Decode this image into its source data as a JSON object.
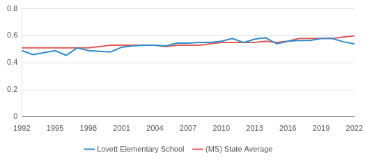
{
  "chart_data": {
    "type": "line",
    "x": [
      1992,
      1993,
      1994,
      1995,
      1996,
      1997,
      1998,
      1999,
      2000,
      2001,
      2002,
      2003,
      2004,
      2005,
      2006,
      2007,
      2008,
      2009,
      2010,
      2011,
      2012,
      2013,
      2014,
      2015,
      2016,
      2017,
      2018,
      2019,
      2020,
      2021,
      2022
    ],
    "series": [
      {
        "name": "Lovett Elementary School",
        "color": "#2f8ac4",
        "values": [
          0.49,
          0.46,
          0.475,
          0.49,
          0.455,
          0.51,
          0.49,
          0.485,
          0.48,
          0.515,
          0.525,
          0.53,
          0.53,
          0.525,
          0.545,
          0.545,
          0.55,
          0.55,
          0.56,
          0.58,
          0.55,
          0.575,
          0.585,
          0.54,
          0.56,
          0.565,
          0.565,
          0.58,
          0.58,
          0.555,
          0.54
        ]
      },
      {
        "name": "(MS) State Average",
        "color": "#e05a5a",
        "values": [
          0.51,
          0.51,
          0.51,
          0.51,
          0.51,
          0.51,
          0.51,
          0.52,
          0.53,
          0.53,
          0.53,
          0.53,
          0.53,
          0.52,
          0.53,
          0.53,
          0.53,
          0.54,
          0.55,
          0.55,
          0.55,
          0.55,
          0.56,
          0.55,
          0.56,
          0.58,
          0.58,
          0.58,
          0.58,
          0.59,
          0.6
        ]
      }
    ],
    "xlim": [
      1992,
      2022
    ],
    "xticks": [
      1992,
      1995,
      1998,
      2001,
      2004,
      2007,
      2010,
      2013,
      2016,
      2019,
      2022
    ],
    "ylim": [
      0,
      0.8
    ],
    "yticks": [
      0,
      0.2,
      0.4,
      0.6,
      0.8
    ],
    "grid": true,
    "legend": "bottom"
  }
}
